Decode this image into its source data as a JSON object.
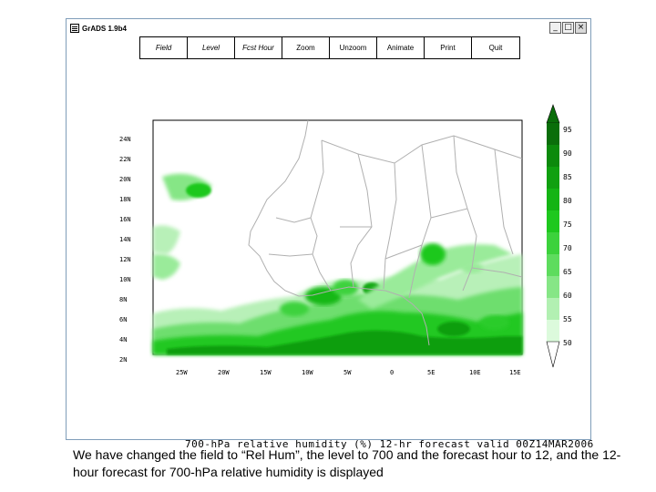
{
  "window": {
    "title": "GrADS 1.9b4",
    "controls": {
      "minimize": "_",
      "maximize": "□",
      "close": "×"
    }
  },
  "menu": [
    {
      "label": "Field",
      "italic": true
    },
    {
      "label": "Level",
      "italic": true
    },
    {
      "label": "Fcst Hour",
      "italic": true
    },
    {
      "label": "Zoom",
      "italic": false
    },
    {
      "label": "Unzoom",
      "italic": false
    },
    {
      "label": "Animate",
      "italic": false
    },
    {
      "label": "Print",
      "italic": false
    },
    {
      "label": "Quit",
      "italic": false
    }
  ],
  "map": {
    "lat_labels": [
      "24N",
      "22N",
      "20N",
      "18N",
      "16N",
      "14N",
      "12N",
      "10N",
      "8N",
      "6N",
      "4N",
      "2N"
    ],
    "lon_labels": [
      "25W",
      "20W",
      "15W",
      "10W",
      "5W",
      "0",
      "5E",
      "10E",
      "15E"
    ],
    "field_color": "#16c216",
    "land_outline_color": "#b0b0b0"
  },
  "colorbar": {
    "labels": [
      "95",
      "90",
      "85",
      "80",
      "75",
      "70",
      "65",
      "60",
      "55",
      "50"
    ],
    "colors": [
      "#0a6e0a",
      "#0c8a0c",
      "#10a010",
      "#14b414",
      "#1ec81e",
      "#3cd23c",
      "#5edc5e",
      "#86e686",
      "#b2f0b2",
      "#dcfadc"
    ]
  },
  "plot_title": "700-hPa relative humidity (%) 12-hr forecast valid 00Z14MAR2006",
  "caption": "We have changed the field to “Rel Hum”, the level to 700 and the forecast hour to 12, and the 12-hour forecast for 700-hPa relative humidity is displayed"
}
